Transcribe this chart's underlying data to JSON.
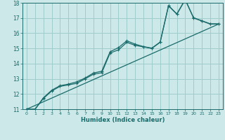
{
  "xlabel": "Humidex (Indice chaleur)",
  "bg_color": "#cce8e8",
  "grid_color": "#a0cccc",
  "line_color": "#1a6b6b",
  "xlim": [
    -0.5,
    23.5
  ],
  "ylim": [
    11,
    18
  ],
  "xticks": [
    0,
    1,
    2,
    3,
    4,
    5,
    6,
    7,
    8,
    9,
    10,
    11,
    12,
    13,
    14,
    15,
    16,
    17,
    18,
    19,
    20,
    21,
    22,
    23
  ],
  "yticks": [
    11,
    12,
    13,
    14,
    15,
    16,
    17,
    18
  ],
  "series1_x": [
    0,
    1,
    2,
    3,
    4,
    5,
    6,
    7,
    8,
    9,
    10,
    11,
    12,
    13,
    14,
    15,
    16,
    17,
    18,
    19,
    20,
    21,
    22,
    23
  ],
  "series1_y": [
    11.0,
    11.0,
    11.7,
    12.2,
    12.5,
    12.6,
    12.7,
    13.0,
    13.3,
    13.4,
    14.7,
    14.9,
    15.4,
    15.2,
    15.1,
    15.0,
    15.4,
    17.8,
    17.25,
    18.2,
    17.0,
    16.8,
    16.6,
    16.6
  ],
  "series2_x": [
    0,
    1,
    2,
    3,
    4,
    5,
    6,
    7,
    8,
    9,
    10,
    11,
    12,
    13,
    14,
    15,
    16,
    17,
    18,
    19,
    20,
    21,
    22,
    23
  ],
  "series2_y": [
    11.0,
    11.0,
    11.75,
    12.25,
    12.55,
    12.65,
    12.8,
    13.05,
    13.38,
    13.5,
    14.78,
    15.05,
    15.5,
    15.28,
    15.12,
    15.02,
    15.42,
    17.82,
    17.27,
    18.22,
    17.02,
    16.82,
    16.62,
    16.62
  ],
  "ref_line_x": [
    0,
    23
  ],
  "ref_line_y": [
    11.0,
    16.6
  ]
}
